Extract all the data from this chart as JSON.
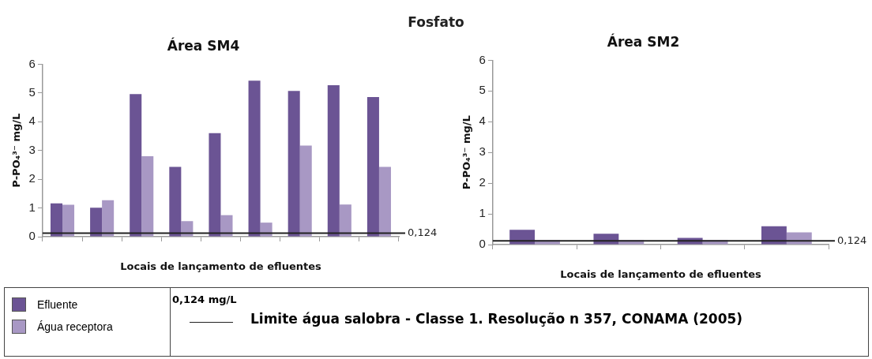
{
  "chart_data": [
    {
      "type": "other",
      "title": "Fosfato",
      "annotations": [
        "0,124 mg/L",
        "Limite água salobra - Classe 1. Resolução n 357, CONAMA (2005)"
      ]
    },
    {
      "type": "bar",
      "title": "Área SM4",
      "xlabel": "Locais de lançamento de efluentes",
      "ylabel": "P-PO₄³⁻ mg/L",
      "categories": [
        null,
        null,
        null,
        null,
        null,
        null,
        null,
        null,
        null
      ],
      "series": [
        {
          "name": "Efluente",
          "color": "#6b5494",
          "values": [
            1.16,
            1.01,
            4.96,
            2.43,
            3.6,
            5.43,
            5.07,
            5.27,
            4.86
          ]
        },
        {
          "name": "Água receptora",
          "color": "#a898c4",
          "values": [
            1.11,
            1.27,
            2.8,
            0.54,
            0.75,
            0.49,
            3.17,
            1.12,
            2.43
          ]
        }
      ],
      "ylim": [
        0,
        6
      ],
      "yticks": [
        0,
        1,
        2,
        3,
        4,
        5,
        6
      ],
      "grid": false,
      "legend": "bottom",
      "ref_lines": [
        {
          "axis": "y",
          "value": 0.124,
          "label": "0,124",
          "color": "#222222"
        }
      ]
    },
    {
      "type": "bar",
      "title": "Área SM2",
      "xlabel": "Locais de lançamento de efluentes",
      "ylabel": "P-PO₄³⁻ mg/L",
      "categories": [
        null,
        null,
        null,
        null
      ],
      "series": [
        {
          "color": "#6b5494",
          "values": [
            0.48,
            0.35,
            0.22,
            0.6
          ]
        },
        {
          "color": "#a898c4",
          "values": [
            0.15,
            0.15,
            0.15,
            0.4
          ]
        }
      ],
      "ylim": [
        0,
        6
      ],
      "yticks": [
        0,
        1,
        2,
        3,
        4,
        5,
        6
      ],
      "grid": false,
      "ref_lines": [
        {
          "axis": "y",
          "value": 0.124,
          "label": "0,124",
          "color": "#222222"
        }
      ]
    }
  ]
}
